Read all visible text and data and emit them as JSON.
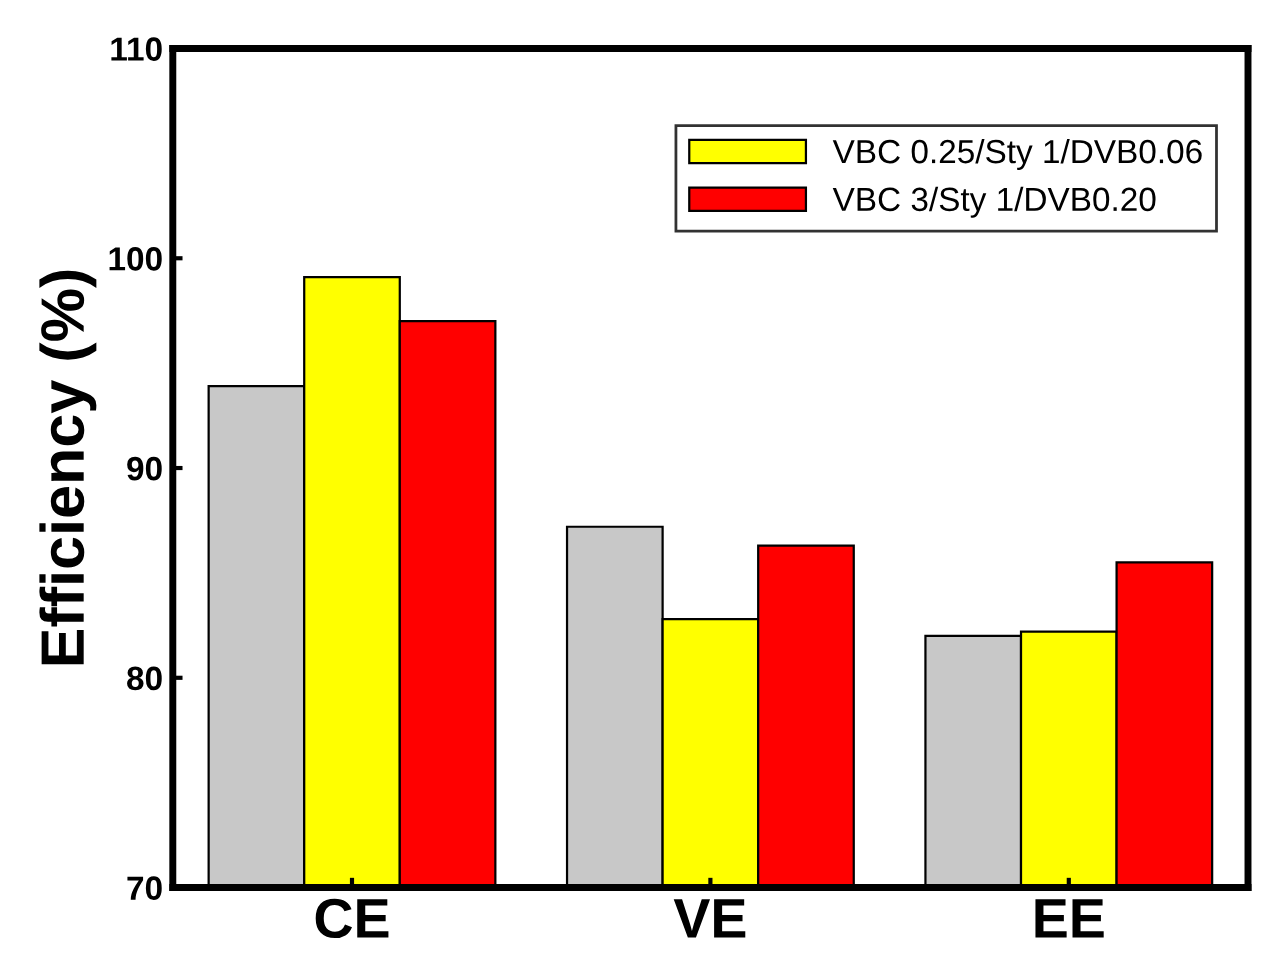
{
  "chart_data": {
    "type": "bar",
    "ylabel": "Efficiency (%)",
    "categories": [
      "CE",
      "VE",
      "EE"
    ],
    "series": [
      {
        "color": "#c8c8c8",
        "values": [
          93.9,
          87.2,
          82.0
        ]
      },
      {
        "name": "VBC 0.25/Sty 1/DVB0.06",
        "color": "#ffff00",
        "values": [
          99.1,
          82.8,
          82.2
        ]
      },
      {
        "name": "VBC 3/Sty 1/DVB0.20",
        "color": "#ff0000",
        "values": [
          97.0,
          86.3,
          85.5
        ]
      }
    ],
    "ylim": [
      70,
      110
    ],
    "yticks": [
      70,
      80,
      90,
      100,
      110
    ],
    "grid": false,
    "legend": "top right"
  }
}
